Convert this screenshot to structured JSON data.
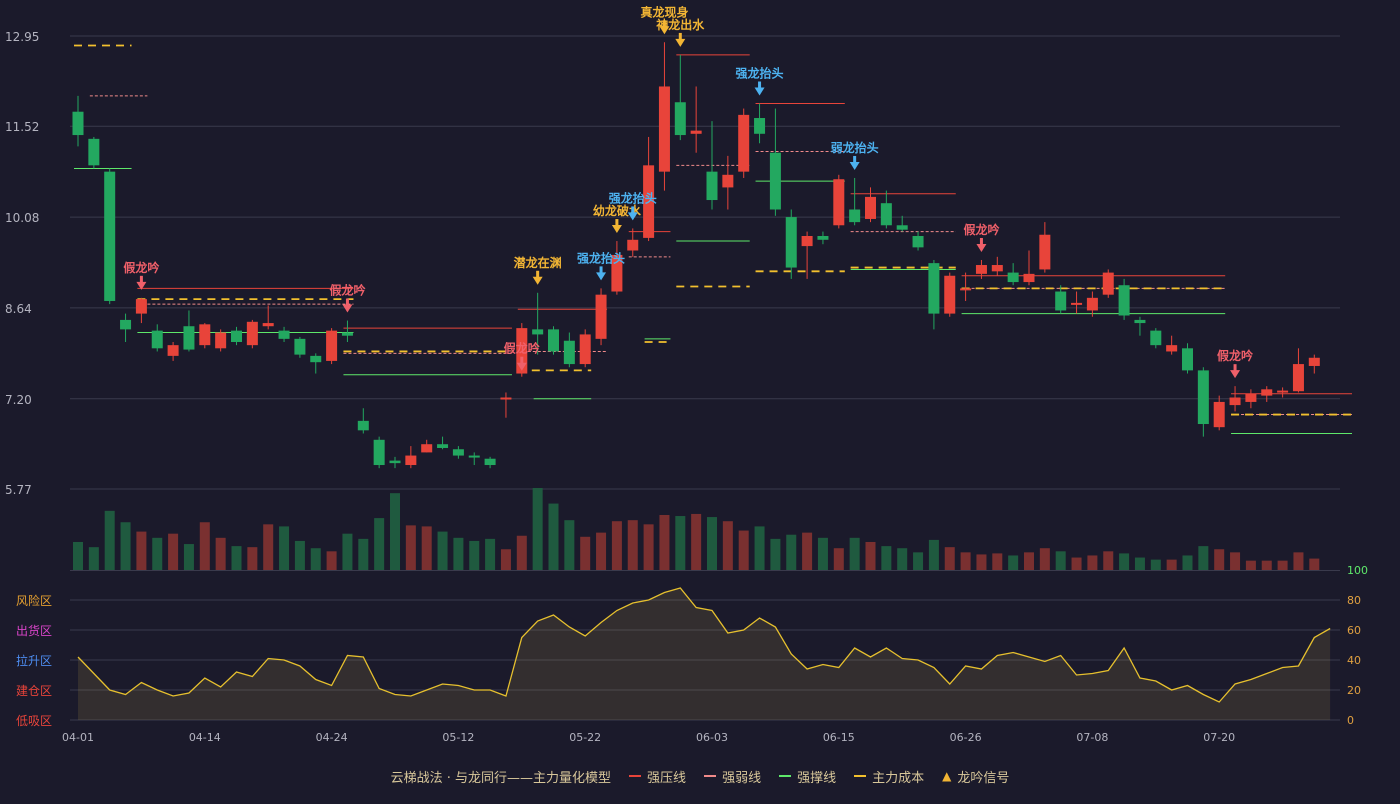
{
  "chart_data": {
    "type": "candlestick",
    "price_axis": {
      "ticks": [
        5.77,
        7.2,
        8.64,
        10.08,
        11.52,
        12.95
      ],
      "range": [
        5.77,
        12.95
      ]
    },
    "x_tick_labels": [
      {
        "index": 0,
        "label": "04-01"
      },
      {
        "index": 8,
        "label": "04-14"
      },
      {
        "index": 16,
        "label": "04-24"
      },
      {
        "index": 24,
        "label": "05-12"
      },
      {
        "index": 32,
        "label": "05-22"
      },
      {
        "index": 40,
        "label": "06-03"
      },
      {
        "index": 48,
        "label": "06-15"
      },
      {
        "index": 56,
        "label": "06-26"
      },
      {
        "index": 64,
        "label": "07-08"
      },
      {
        "index": 72,
        "label": "07-20"
      }
    ],
    "candles": [
      [
        11.75,
        11.38,
        12.0,
        11.2
      ],
      [
        11.32,
        10.9,
        11.35,
        10.85
      ],
      [
        10.8,
        8.75,
        10.85,
        8.7
      ],
      [
        8.45,
        8.3,
        8.55,
        8.1
      ],
      [
        8.55,
        8.78,
        8.8,
        8.4
      ],
      [
        8.28,
        8.0,
        8.38,
        7.95
      ],
      [
        7.88,
        8.05,
        8.1,
        7.8
      ],
      [
        8.35,
        7.98,
        8.6,
        7.95
      ],
      [
        8.05,
        8.38,
        8.4,
        8.0
      ],
      [
        8.0,
        8.25,
        8.3,
        7.95
      ],
      [
        8.28,
        8.1,
        8.34,
        8.05
      ],
      [
        8.05,
        8.42,
        8.45,
        8.0
      ],
      [
        8.35,
        8.4,
        8.68,
        8.3
      ],
      [
        8.28,
        8.15,
        8.34,
        8.1
      ],
      [
        8.15,
        7.9,
        8.18,
        7.85
      ],
      [
        7.88,
        7.78,
        7.92,
        7.6
      ],
      [
        7.8,
        8.28,
        8.32,
        7.75
      ],
      [
        8.25,
        8.2,
        8.44,
        8.1
      ],
      [
        6.85,
        6.7,
        7.05,
        6.65
      ],
      [
        6.55,
        6.15,
        6.6,
        6.1
      ],
      [
        6.22,
        6.18,
        6.28,
        6.1
      ],
      [
        6.15,
        6.3,
        6.45,
        6.1
      ],
      [
        6.35,
        6.48,
        6.55,
        6.35
      ],
      [
        6.48,
        6.42,
        6.6,
        6.4
      ],
      [
        6.4,
        6.3,
        6.45,
        6.25
      ],
      [
        6.3,
        6.28,
        6.35,
        6.15
      ],
      [
        6.25,
        6.15,
        6.28,
        6.1
      ],
      [
        7.2,
        7.22,
        7.3,
        6.9
      ],
      [
        7.6,
        8.32,
        8.4,
        7.55
      ],
      [
        8.3,
        8.22,
        8.88,
        7.9
      ],
      [
        8.3,
        7.95,
        8.35,
        7.9
      ],
      [
        8.12,
        7.75,
        8.25,
        7.7
      ],
      [
        7.75,
        8.22,
        8.3,
        7.7
      ],
      [
        8.15,
        8.85,
        8.95,
        8.05
      ],
      [
        8.9,
        9.48,
        9.7,
        8.85
      ],
      [
        9.55,
        9.72,
        9.9,
        9.45
      ],
      [
        9.75,
        10.9,
        11.35,
        9.7
      ],
      [
        10.8,
        12.15,
        12.85,
        10.5
      ],
      [
        11.9,
        11.38,
        12.65,
        11.3
      ],
      [
        11.4,
        11.45,
        12.15,
        11.1
      ],
      [
        10.8,
        10.35,
        11.6,
        10.2
      ],
      [
        10.55,
        10.75,
        11.05,
        10.2
      ],
      [
        10.8,
        11.7,
        11.8,
        10.7
      ],
      [
        11.65,
        11.4,
        11.88,
        11.25
      ],
      [
        11.1,
        10.2,
        11.8,
        10.1
      ],
      [
        10.08,
        9.28,
        10.2,
        9.1
      ],
      [
        9.62,
        9.78,
        9.85,
        9.1
      ],
      [
        9.78,
        9.72,
        9.85,
        9.65
      ],
      [
        9.95,
        10.68,
        10.75,
        9.9
      ],
      [
        10.2,
        10.0,
        10.7,
        9.95
      ],
      [
        10.05,
        10.4,
        10.55,
        10.0
      ],
      [
        10.3,
        9.95,
        10.5,
        9.9
      ],
      [
        9.95,
        9.88,
        10.1,
        9.85
      ],
      [
        9.78,
        9.6,
        9.85,
        9.55
      ],
      [
        9.35,
        8.55,
        9.4,
        8.3
      ],
      [
        8.55,
        9.15,
        9.2,
        8.5
      ],
      [
        8.95,
        8.95,
        9.2,
        8.75
      ],
      [
        9.18,
        9.32,
        9.4,
        9.1
      ],
      [
        9.22,
        9.32,
        9.45,
        9.15
      ],
      [
        9.2,
        9.05,
        9.35,
        9.0
      ],
      [
        9.05,
        9.18,
        9.55,
        9.0
      ],
      [
        9.25,
        9.8,
        10.0,
        9.2
      ],
      [
        8.9,
        8.6,
        9.0,
        8.55
      ],
      [
        8.72,
        8.72,
        8.9,
        8.55
      ],
      [
        8.6,
        8.8,
        8.9,
        8.5
      ],
      [
        8.85,
        9.2,
        9.25,
        8.8
      ],
      [
        9.0,
        8.52,
        9.1,
        8.45
      ],
      [
        8.45,
        8.4,
        8.5,
        8.2
      ],
      [
        8.28,
        8.05,
        8.32,
        8.0
      ],
      [
        7.95,
        8.05,
        8.2,
        7.9
      ],
      [
        8.0,
        7.65,
        8.08,
        7.6
      ],
      [
        7.65,
        6.8,
        7.7,
        6.6
      ],
      [
        6.75,
        7.15,
        7.25,
        6.7
      ],
      [
        7.1,
        7.22,
        7.4,
        7.0
      ],
      [
        7.15,
        7.28,
        7.35,
        7.05
      ],
      [
        7.25,
        7.35,
        7.4,
        7.15
      ],
      [
        7.3,
        7.33,
        7.38,
        7.22
      ],
      [
        7.32,
        7.75,
        8.0,
        7.3
      ],
      [
        7.72,
        7.85,
        7.9,
        7.6
      ]
    ],
    "volume": [
      27,
      22,
      57,
      46,
      37,
      31,
      35,
      25,
      46,
      31,
      23,
      22,
      44,
      42,
      28,
      21,
      18,
      35,
      30,
      50,
      74,
      43,
      42,
      37,
      31,
      28,
      30,
      20,
      33,
      79,
      64,
      48,
      32,
      36,
      47,
      48,
      44,
      53,
      52,
      54,
      51,
      47,
      38,
      42,
      30,
      34,
      36,
      31,
      21,
      31,
      27,
      23,
      21,
      17,
      29,
      22,
      17,
      15,
      16,
      14,
      17,
      21,
      18,
      12,
      14,
      18,
      16,
      12,
      10,
      10,
      14,
      23,
      20,
      17,
      9,
      9,
      9,
      17,
      11
    ],
    "indicator": {
      "yrange": [
        0,
        100
      ],
      "ticks": [
        0,
        20,
        40,
        60,
        80,
        100
      ],
      "zones": [
        "风险区",
        "出货区",
        "拉升区",
        "建仓区",
        "低吸区"
      ],
      "values": [
        42,
        31,
        20,
        17,
        25,
        20,
        16,
        18,
        28,
        22,
        32,
        29,
        41,
        40,
        36,
        27,
        23,
        43,
        42,
        21,
        17,
        16,
        20,
        24,
        23,
        20,
        20,
        16,
        55,
        66,
        70,
        62,
        56,
        65,
        73,
        78,
        80,
        85,
        88,
        75,
        73,
        58,
        60,
        68,
        62,
        44,
        34,
        37,
        35,
        48,
        42,
        48,
        41,
        40,
        35,
        24,
        36,
        34,
        43,
        45,
        42,
        39,
        43,
        30,
        31,
        33,
        48,
        28,
        26,
        20,
        23,
        17,
        12,
        24,
        27,
        31,
        35,
        36,
        55,
        61
      ]
    },
    "signals": [
      {
        "index": 4,
        "text": "假龙吟",
        "kind": "fake"
      },
      {
        "index": 17,
        "text": "假龙吟",
        "kind": "fake"
      },
      {
        "index": 29,
        "text": "潜龙在渊",
        "kind": "gold"
      },
      {
        "index": 28,
        "text": "假龙吟",
        "kind": "fake",
        "below": true
      },
      {
        "index": 33,
        "text": "强龙抬头",
        "kind": "blue"
      },
      {
        "index": 34,
        "text": "幼龙破水",
        "kind": "gold"
      },
      {
        "index": 35,
        "text": "强龙抬头",
        "kind": "blue"
      },
      {
        "index": 37,
        "text": "真龙现身",
        "kind": "gold"
      },
      {
        "index": 38,
        "text": "神龙出水",
        "kind": "gold"
      },
      {
        "index": 43,
        "text": "强龙抬头",
        "kind": "blue"
      },
      {
        "index": 49,
        "text": "弱龙抬头",
        "kind": "blue"
      },
      {
        "index": 57,
        "text": "假龙吟",
        "kind": "fake"
      },
      {
        "index": 73,
        "text": "假龙吟",
        "kind": "fake"
      }
    ],
    "lines": {
      "resist": [
        [
          4,
          17,
          8.95
        ],
        [
          17,
          27,
          8.32
        ],
        [
          28,
          33,
          8.62
        ],
        [
          35,
          37,
          9.85
        ],
        [
          38,
          42,
          12.65
        ],
        [
          43,
          48,
          11.88
        ],
        [
          49,
          55,
          10.45
        ],
        [
          56,
          72,
          9.15
        ],
        [
          73,
          80,
          7.28
        ]
      ],
      "weak": [
        [
          1,
          4,
          12.0
        ],
        [
          4,
          17,
          8.7
        ],
        [
          17,
          27,
          7.92
        ],
        [
          28,
          33,
          7.95
        ],
        [
          35,
          37,
          9.45
        ],
        [
          38,
          42,
          10.9
        ],
        [
          43,
          48,
          11.12
        ],
        [
          49,
          55,
          9.85
        ],
        [
          56,
          72,
          8.95
        ],
        [
          73,
          80,
          6.95
        ]
      ],
      "support": [
        [
          0,
          3,
          10.85
        ],
        [
          4,
          17,
          8.25
        ],
        [
          17,
          27,
          7.58
        ],
        [
          29,
          32,
          7.2
        ],
        [
          36,
          37,
          8.15
        ],
        [
          38,
          42,
          9.7
        ],
        [
          43,
          48,
          10.65
        ],
        [
          49,
          55,
          9.25
        ],
        [
          56,
          72,
          8.55
        ],
        [
          73,
          80,
          6.65
        ]
      ],
      "cost": [
        [
          0,
          3,
          12.8
        ],
        [
          4,
          17,
          8.78
        ],
        [
          17,
          27,
          7.95
        ],
        [
          28,
          32,
          7.65
        ],
        [
          36,
          37,
          8.1
        ],
        [
          38,
          42,
          8.98
        ],
        [
          43,
          48,
          9.22
        ],
        [
          49,
          55,
          9.28
        ],
        [
          56,
          72,
          8.95
        ],
        [
          73,
          80,
          6.95
        ]
      ]
    }
  },
  "legend": {
    "title": "云梯战法 · 与龙同行——主力量化模型",
    "resist": "强压线",
    "weak": "强弱线",
    "support": "强撑线",
    "cost": "主力成本",
    "signal": "龙吟信号"
  },
  "colors": {
    "background": "#1b1a2b",
    "up": "#e8443a",
    "down": "#23a860",
    "grid": "#3a3a4c",
    "resist": "#e8443a",
    "weak": "#f08a8a",
    "support": "#5ee86a",
    "cost": "#f2c02e",
    "indicator": "#e6c02e",
    "fake": "#f0606a",
    "gold": "#f2b534",
    "blue": "#4db2f0"
  }
}
